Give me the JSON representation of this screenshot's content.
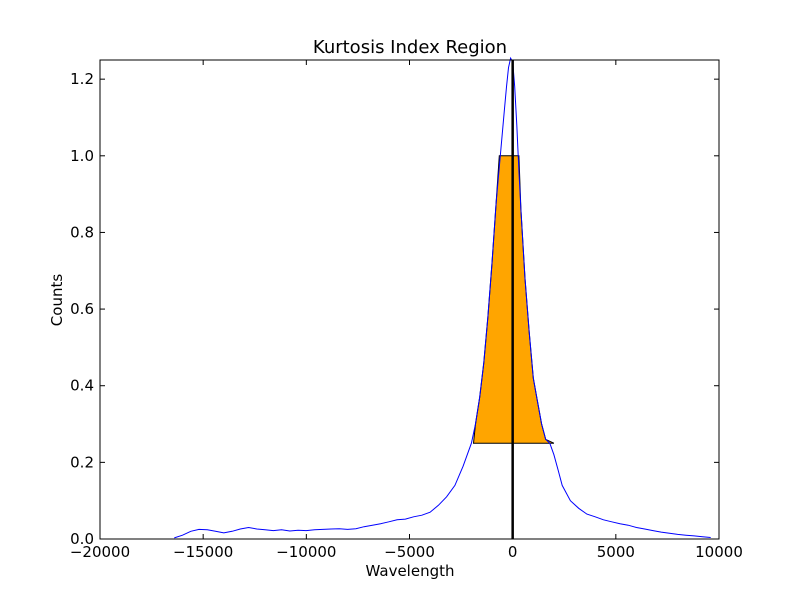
{
  "chart_data": {
    "type": "line",
    "title": "Kurtosis Index Region",
    "xlabel": "Wavelength",
    "ylabel": "Counts",
    "xlim": [
      -20000,
      10000
    ],
    "ylim": [
      0.0,
      1.25
    ],
    "xticks": [
      -20000,
      -15000,
      -10000,
      -5000,
      0,
      5000,
      10000
    ],
    "xtick_labels": [
      "−20000",
      "−15000",
      "−10000",
      "−5000",
      "0",
      "5000",
      "10000"
    ],
    "yticks": [
      0.0,
      0.2,
      0.4,
      0.6,
      0.8,
      1.0,
      1.2
    ],
    "ytick_labels": [
      "0.0",
      "0.2",
      "0.4",
      "0.6",
      "0.8",
      "1.0",
      "1.2"
    ],
    "grid": false,
    "series": [
      {
        "color": "#0000ff",
        "x": [
          -16400,
          -16000,
          -15600,
          -15200,
          -14800,
          -14400,
          -14000,
          -13600,
          -13200,
          -12800,
          -12400,
          -12000,
          -11600,
          -11200,
          -10800,
          -10400,
          -10000,
          -9600,
          -9200,
          -8800,
          -8400,
          -8000,
          -7600,
          -7200,
          -6800,
          -6400,
          -6000,
          -5600,
          -5200,
          -4800,
          -4400,
          -4000,
          -3600,
          -3200,
          -2800,
          -2400,
          -2000,
          -1800,
          -1600,
          -1400,
          -1200,
          -1000,
          -800,
          -600,
          -400,
          -300,
          -200,
          -100,
          0,
          100,
          200,
          300,
          400,
          600,
          800,
          1000,
          1200,
          1400,
          1600,
          1800,
          2000,
          2200,
          2400,
          2800,
          3200,
          3600,
          4000,
          4400,
          4800,
          5200,
          5600,
          6000,
          6400,
          6800,
          7200,
          7600,
          8000,
          8400,
          8800,
          9200,
          9600
        ],
        "y": [
          0.003,
          0.01,
          0.02,
          0.025,
          0.024,
          0.02,
          0.016,
          0.02,
          0.026,
          0.03,
          0.026,
          0.024,
          0.022,
          0.024,
          0.021,
          0.023,
          0.022,
          0.024,
          0.025,
          0.026,
          0.027,
          0.025,
          0.027,
          0.032,
          0.036,
          0.04,
          0.045,
          0.05,
          0.052,
          0.058,
          0.062,
          0.07,
          0.088,
          0.11,
          0.14,
          0.19,
          0.25,
          0.3,
          0.37,
          0.46,
          0.58,
          0.72,
          0.88,
          1.0,
          1.12,
          1.18,
          1.23,
          1.255,
          1.245,
          1.18,
          1.08,
          0.96,
          0.86,
          0.68,
          0.54,
          0.42,
          0.36,
          0.3,
          0.26,
          0.25,
          0.22,
          0.18,
          0.14,
          0.1,
          0.08,
          0.065,
          0.058,
          0.05,
          0.045,
          0.04,
          0.036,
          0.03,
          0.026,
          0.022,
          0.018,
          0.015,
          0.012,
          0.01,
          0.008,
          0.006,
          0.004
        ]
      }
    ],
    "shaded_region": {
      "fill": "#ffa500",
      "bottom": 0.25,
      "top": 1.0,
      "outline": [
        [
          -1900,
          0.25
        ],
        [
          -1800,
          0.3
        ],
        [
          -1600,
          0.37
        ],
        [
          -1400,
          0.46
        ],
        [
          -1200,
          0.58
        ],
        [
          -1000,
          0.72
        ],
        [
          -800,
          0.88
        ],
        [
          -650,
          1.0
        ],
        [
          300,
          1.0
        ],
        [
          400,
          0.86
        ],
        [
          600,
          0.68
        ],
        [
          800,
          0.54
        ],
        [
          1000,
          0.42
        ],
        [
          1200,
          0.36
        ],
        [
          1400,
          0.3
        ],
        [
          1600,
          0.26
        ],
        [
          2000,
          0.25
        ]
      ]
    },
    "vertical_line": {
      "x": 0,
      "color": "#000000"
    }
  }
}
